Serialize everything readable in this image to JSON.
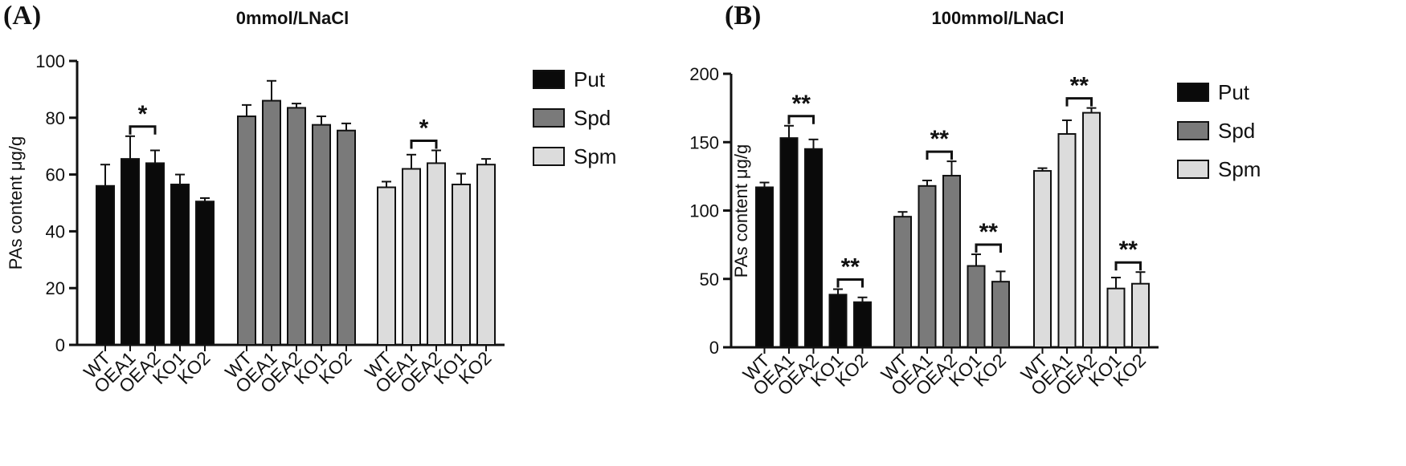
{
  "chart_data": [
    {
      "type": "bar",
      "panel_label": "(A)",
      "title": "0mmol/LNaCl",
      "ylabel": "PAs content μg/g",
      "xlabel": "",
      "ylim": [
        0,
        100
      ],
      "yticks": [
        0,
        20,
        40,
        60,
        80,
        100
      ],
      "ytick_labels": [
        "0",
        "20",
        "40",
        "60",
        "80",
        "100"
      ],
      "categories": [
        "WT",
        "OEA1",
        "OEA2",
        "KO1",
        "KO2"
      ],
      "legend": {
        "position": "right",
        "entries": [
          "Put",
          "Spd",
          "Spm"
        ]
      },
      "colors": [
        "#0a0a0a",
        "#7a7a7a",
        "#dcdcdc"
      ],
      "series": [
        {
          "name": "Put",
          "values": [
            56,
            65.5,
            64,
            56.5,
            50.5
          ],
          "errors": [
            7.5,
            8,
            4.5,
            3.5,
            1.2
          ]
        },
        {
          "name": "Spd",
          "values": [
            80.5,
            86,
            83.5,
            77.5,
            75.5
          ],
          "errors": [
            4,
            7,
            1.5,
            3,
            2.5
          ]
        },
        {
          "name": "Spm",
          "values": [
            55.5,
            62,
            64,
            56.5,
            63.5
          ],
          "errors": [
            2,
            5,
            4.5,
            3.8,
            2
          ]
        }
      ],
      "significance": [
        {
          "series": "Put",
          "from": 1,
          "to": 2,
          "label": "*"
        },
        {
          "series": "Spm",
          "from": 1,
          "to": 2,
          "label": "*"
        }
      ]
    },
    {
      "type": "bar",
      "panel_label": "(B)",
      "title": "100mmol/LNaCl",
      "ylabel": "PAs content μg/g",
      "xlabel": "",
      "ylim": [
        0,
        200
      ],
      "yticks": [
        0,
        50,
        100,
        150,
        200
      ],
      "ytick_labels": [
        "0",
        "50",
        "100",
        "150",
        "200"
      ],
      "categories": [
        "WT",
        "OEA1",
        "OEA2",
        "KO1",
        "KO2"
      ],
      "legend": {
        "position": "right",
        "entries": [
          "Put",
          "Spd",
          "Spm"
        ]
      },
      "colors": [
        "#0a0a0a",
        "#7a7a7a",
        "#dcdcdc"
      ],
      "series": [
        {
          "name": "Put",
          "values": [
            117,
            153,
            145,
            38.5,
            33
          ],
          "errors": [
            3.5,
            9,
            7,
            4,
            3.5
          ]
        },
        {
          "name": "Spd",
          "values": [
            95.5,
            118,
            125.5,
            59.5,
            48
          ],
          "errors": [
            3.5,
            4,
            10.5,
            8.5,
            7.5
          ]
        },
        {
          "name": "Spm",
          "values": [
            129,
            156,
            171.5,
            43,
            46.5
          ],
          "errors": [
            2,
            10,
            3.5,
            8,
            8.5
          ]
        }
      ],
      "significance": [
        {
          "series": "Put",
          "from": 1,
          "to": 2,
          "label": "**"
        },
        {
          "series": "Put",
          "from": 3,
          "to": 4,
          "label": "**"
        },
        {
          "series": "Spd",
          "from": 1,
          "to": 2,
          "label": "**"
        },
        {
          "series": "Spd",
          "from": 3,
          "to": 4,
          "label": "**"
        },
        {
          "series": "Spm",
          "from": 1,
          "to": 2,
          "label": "**"
        },
        {
          "series": "Spm",
          "from": 3,
          "to": 4,
          "label": "**"
        }
      ]
    }
  ]
}
